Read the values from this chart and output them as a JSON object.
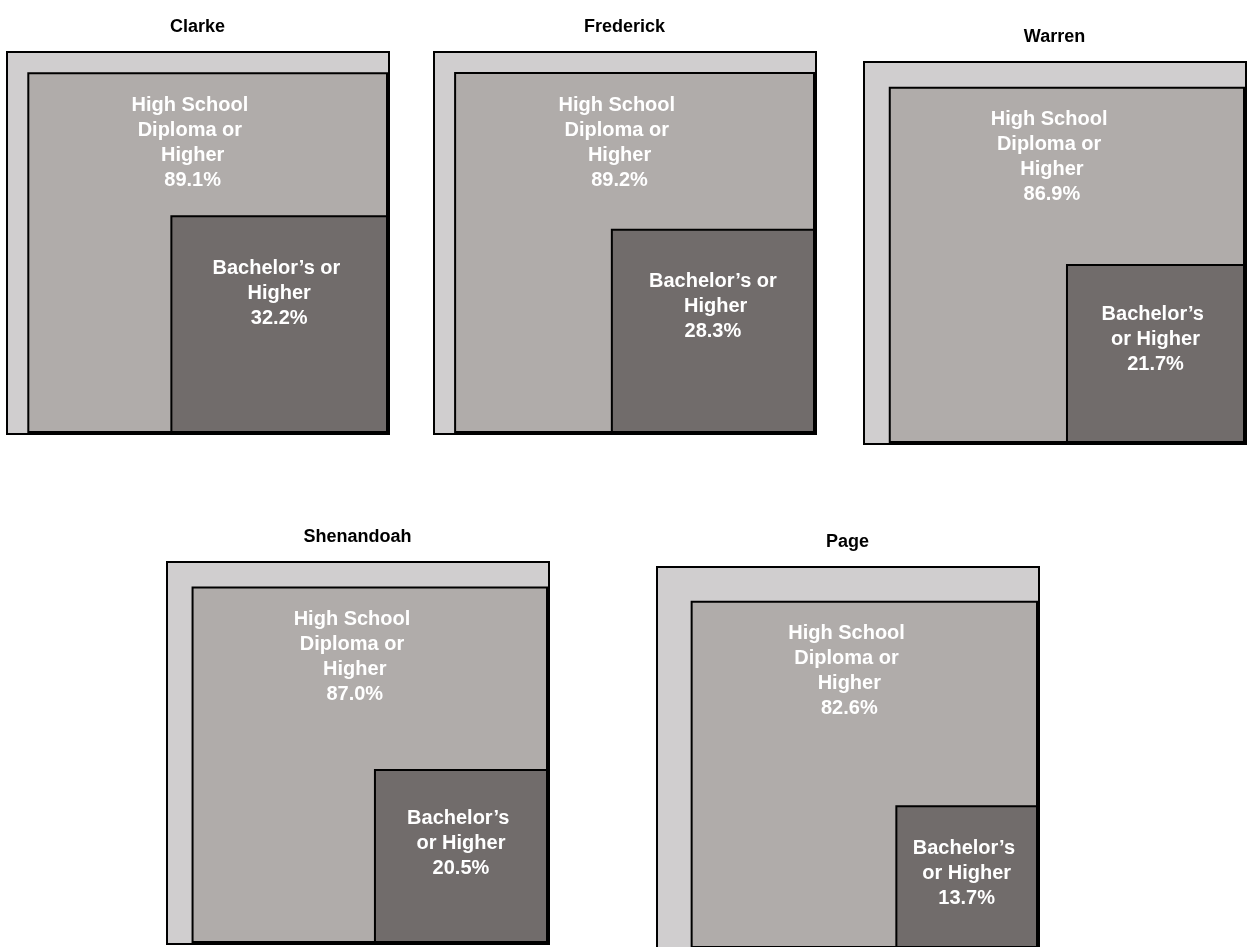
{
  "chart_data": [
    {
      "type": "other",
      "title": "Clarke",
      "categories": [
        "High School Diploma or Higher",
        "Bachelor’s or Higher"
      ],
      "values": [
        89.1,
        32.2
      ],
      "value_labels": [
        "89.1%",
        "32.2%"
      ],
      "colors": [
        "#b0acaa",
        "#716c6b"
      ]
    },
    {
      "type": "other",
      "title": "Frederick",
      "categories": [
        "High School Diploma or Higher",
        "Bachelor’s or Higher"
      ],
      "values": [
        89.2,
        28.3
      ],
      "value_labels": [
        "89.2%",
        "28.3%"
      ],
      "colors": [
        "#b0acaa",
        "#716c6b"
      ]
    },
    {
      "type": "other",
      "title": "Warren",
      "categories": [
        "High School Diploma or Higher",
        "Bachelor’s or Higher"
      ],
      "values": [
        86.9,
        21.7
      ],
      "value_labels": [
        "86.9%",
        "21.7%"
      ],
      "colors": [
        "#b0acaa",
        "#716c6b"
      ]
    },
    {
      "type": "other",
      "title": "Shenandoah",
      "categories": [
        "High School Diploma or Higher",
        "Bachelor’s or Higher"
      ],
      "values": [
        87.0,
        20.5
      ],
      "value_labels": [
        "87.0%",
        "20.5%"
      ],
      "colors": [
        "#b0acaa",
        "#716c6b"
      ]
    },
    {
      "type": "other",
      "title": "Page",
      "categories": [
        "High School Diploma or Higher",
        "Bachelor’s or Higher"
      ],
      "values": [
        82.6,
        13.7
      ],
      "value_labels": [
        "82.6%",
        "13.7%"
      ],
      "colors": [
        "#b0acaa",
        "#716c6b"
      ]
    }
  ]
}
